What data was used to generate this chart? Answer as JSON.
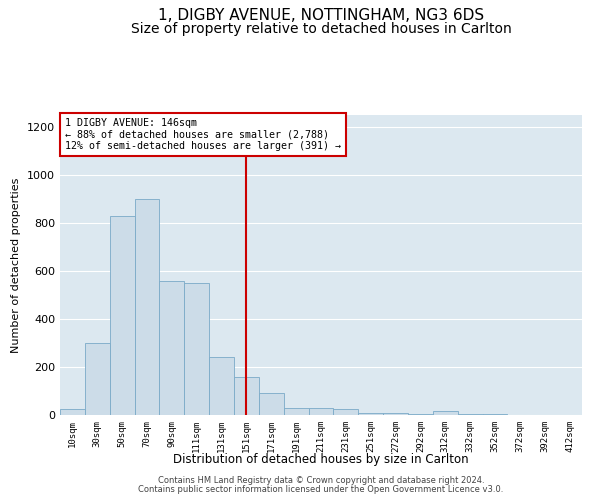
{
  "title1": "1, DIGBY AVENUE, NOTTINGHAM, NG3 6DS",
  "title2": "Size of property relative to detached houses in Carlton",
  "xlabel": "Distribution of detached houses by size in Carlton",
  "ylabel": "Number of detached properties",
  "footer1": "Contains HM Land Registry data © Crown copyright and database right 2024.",
  "footer2": "Contains public sector information licensed under the Open Government Licence v3.0.",
  "annotation_line1": "1 DIGBY AVENUE: 146sqm",
  "annotation_line2": "← 88% of detached houses are smaller (2,788)",
  "annotation_line3": "12% of semi-detached houses are larger (391) →",
  "bar_color": "#ccdce8",
  "bar_edge_color": "#7aaac8",
  "vline_color": "#cc0000",
  "vline_x": 7,
  "categories": [
    "10sqm",
    "30sqm",
    "50sqm",
    "70sqm",
    "90sqm",
    "111sqm",
    "131sqm",
    "151sqm",
    "171sqm",
    "191sqm",
    "211sqm",
    "231sqm",
    "251sqm",
    "272sqm",
    "292sqm",
    "312sqm",
    "332sqm",
    "352sqm",
    "372sqm",
    "392sqm",
    "412sqm"
  ],
  "values": [
    25,
    300,
    830,
    900,
    560,
    550,
    240,
    160,
    90,
    30,
    30,
    25,
    8,
    8,
    5,
    18,
    5,
    5,
    2,
    2,
    2
  ],
  "ylim": [
    0,
    1250
  ],
  "yticks": [
    0,
    200,
    400,
    600,
    800,
    1000,
    1200
  ],
  "background_color": "#dce8f0",
  "title_fontsize": 11,
  "subtitle_fontsize": 10
}
